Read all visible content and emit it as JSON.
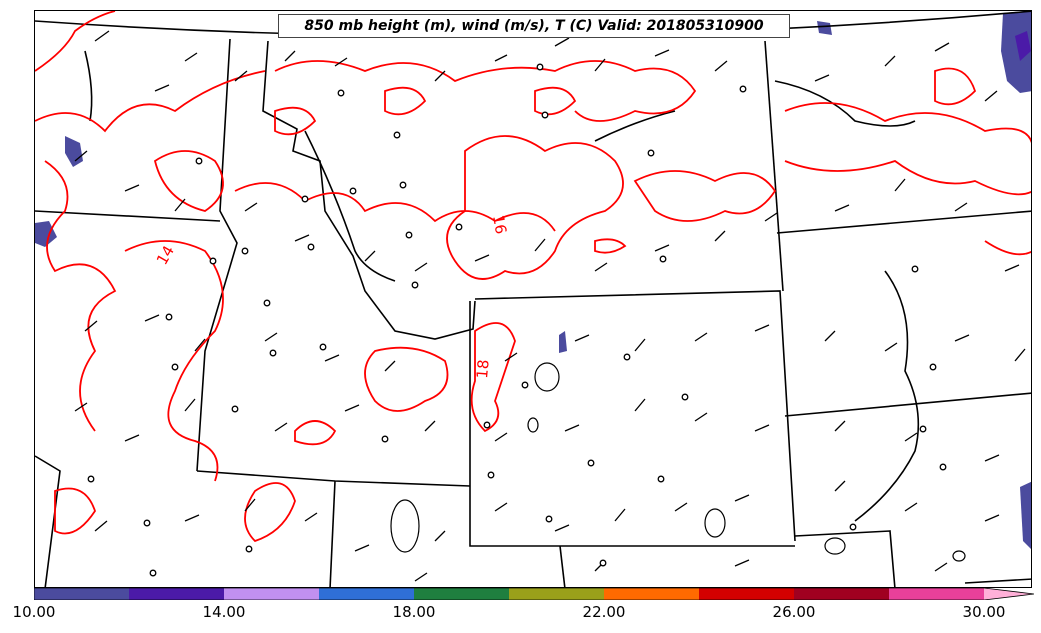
{
  "map": {
    "title": "850 mb height (m), wind (m/s), T (C) Valid: 201805310900",
    "contour_color": "#ff0000",
    "contour_labels": [
      "14",
      "16",
      "18"
    ],
    "boundary_color": "#000000"
  },
  "colorbar": {
    "tick_labels": [
      "10.00",
      "14.00",
      "18.00",
      "22.00",
      "26.00",
      "30.00"
    ],
    "colors": [
      "#4b4b9e",
      "#4b1aa8",
      "#c190f0",
      "#2f6fd6",
      "#1f7f3f",
      "#9aa01a",
      "#ff6a00",
      "#d40000",
      "#a00020",
      "#e8409a",
      "#ffb0d8"
    ]
  }
}
